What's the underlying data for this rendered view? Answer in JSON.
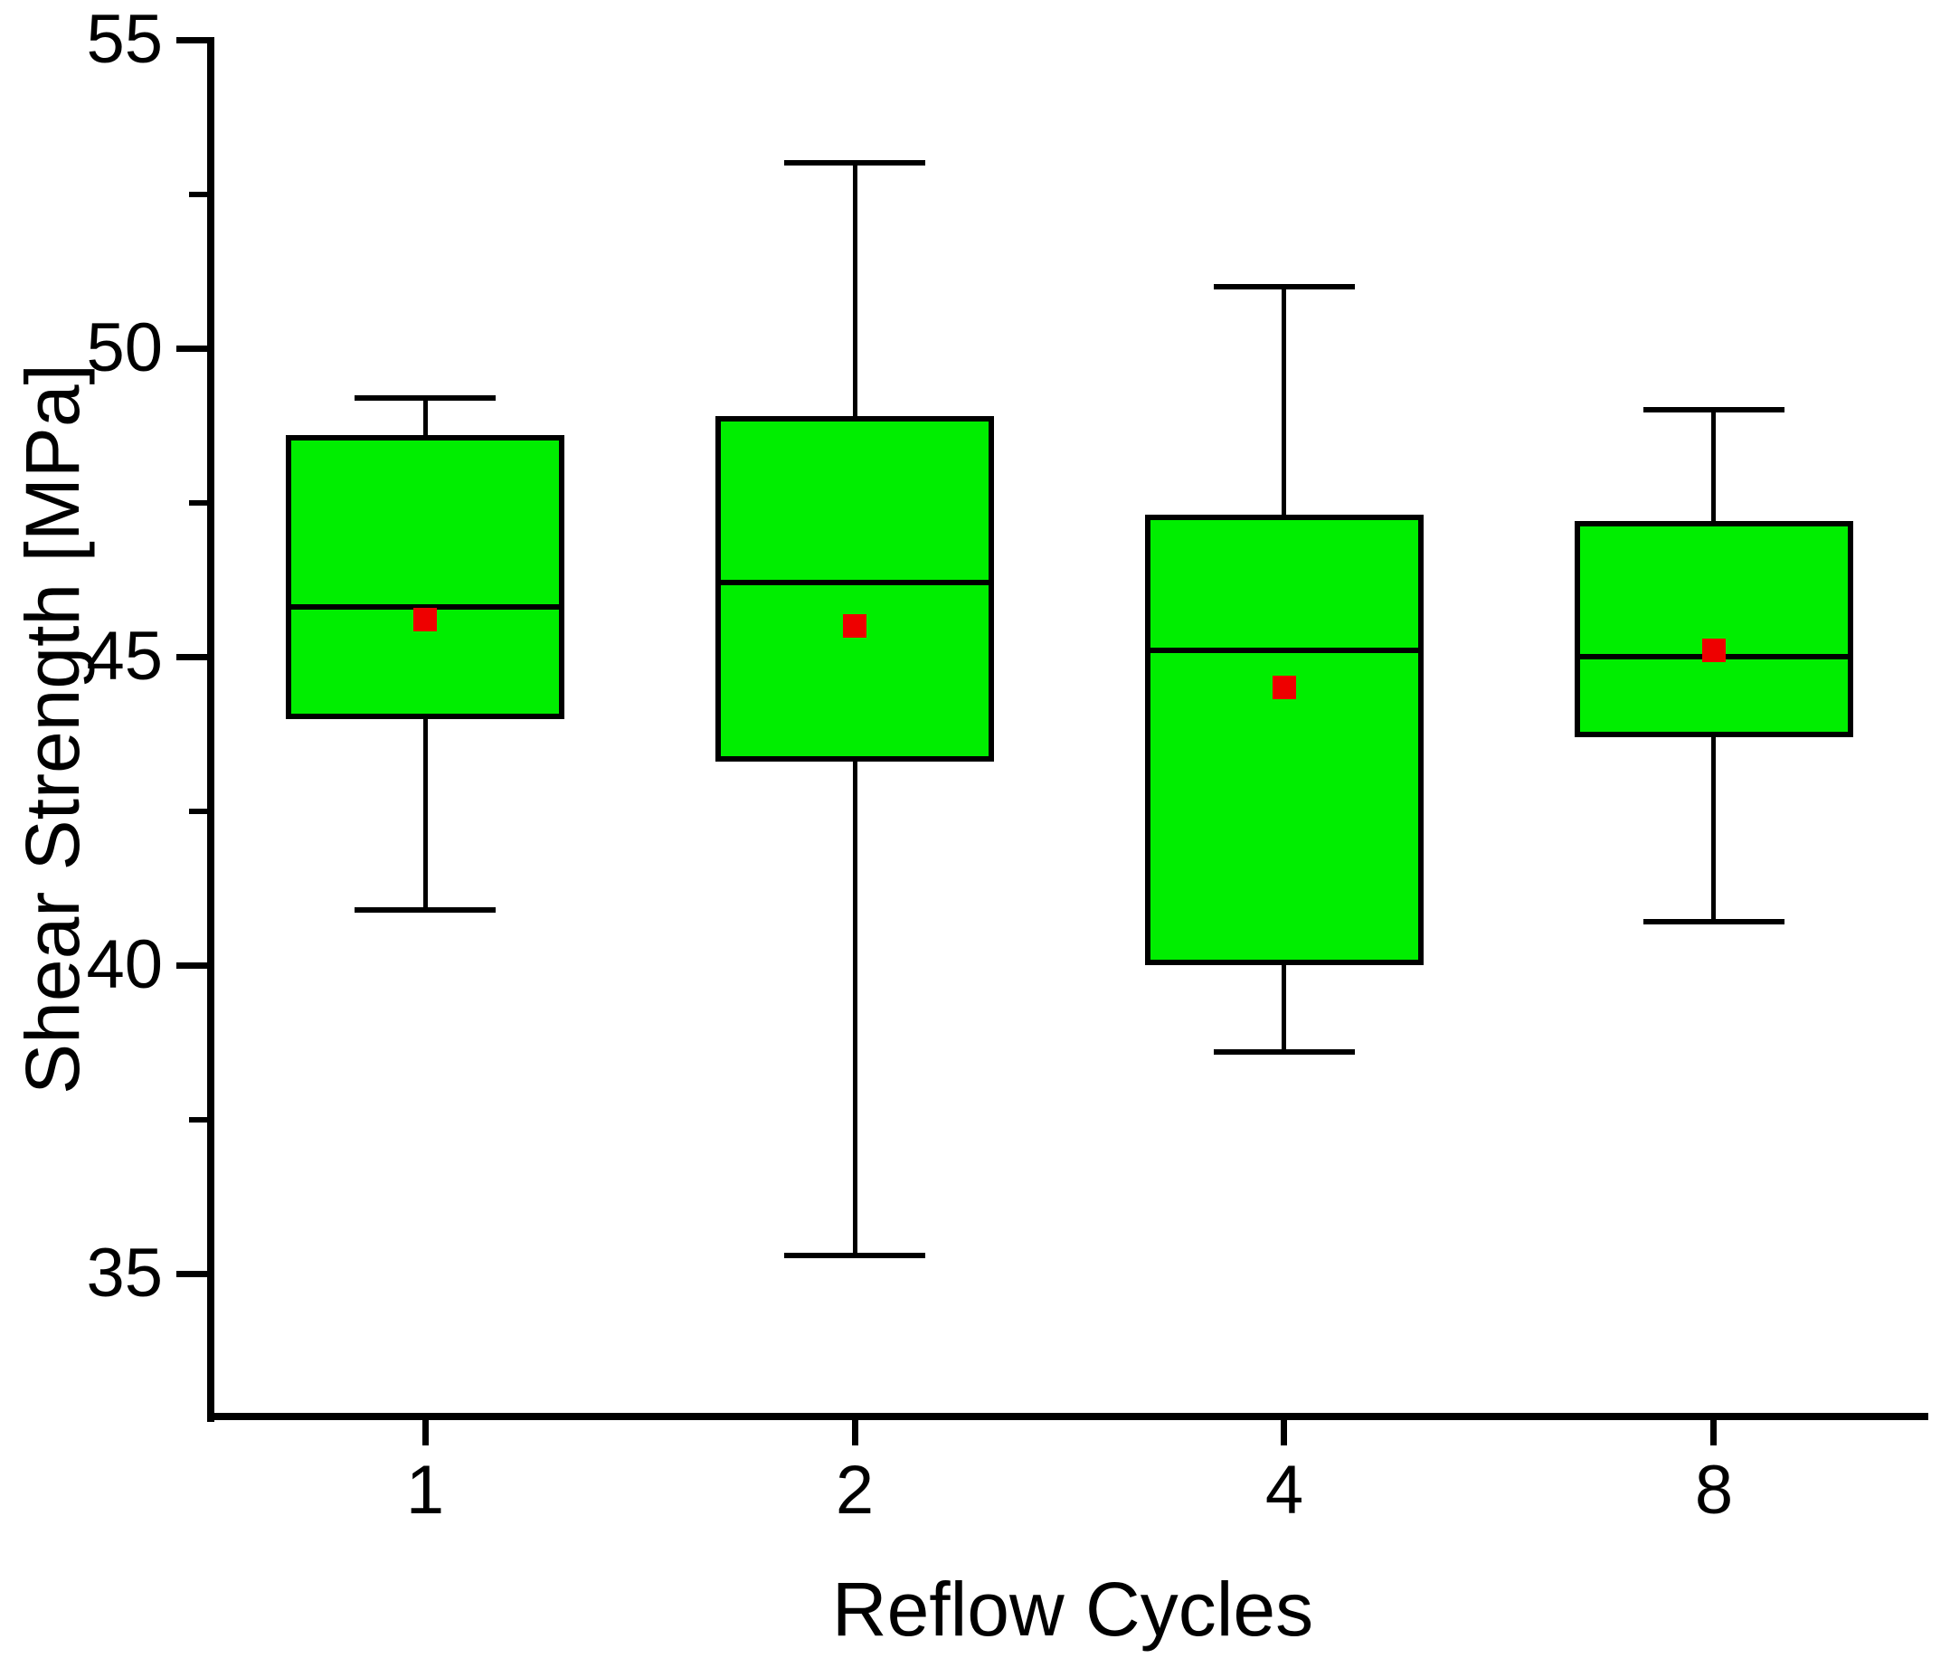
{
  "figure": {
    "background": "#ffffff"
  },
  "y_axis": {
    "title": "Shear Strength [MPa]",
    "range_low": 32.7,
    "range_high": 55,
    "major_ticks": [
      {
        "value": 55,
        "label": "55"
      },
      {
        "value": 50,
        "label": "50"
      },
      {
        "value": 45,
        "label": "45"
      },
      {
        "value": 40,
        "label": "40"
      },
      {
        "value": 35,
        "label": "35"
      }
    ],
    "minor_ticks": [
      52.5,
      47.5,
      42.5,
      37.5
    ]
  },
  "x_axis": {
    "title": "Reflow Cycles",
    "categories": [
      "1",
      "2",
      "4",
      "8"
    ]
  },
  "style": {
    "box_fill": "#00EE00",
    "box_border": "#000000",
    "mean_marker_color": "#EE0000",
    "axis_color": "#000000"
  },
  "chart_data": {
    "type": "box",
    "title": "",
    "xlabel": "Reflow Cycles",
    "ylabel": "Shear Strength [MPa]",
    "ylim": [
      32.7,
      55
    ],
    "grid": false,
    "legend": false,
    "categories": [
      "1",
      "2",
      "4",
      "8"
    ],
    "series": [
      {
        "category": "1",
        "whisker_low": 40.9,
        "q1": 44.0,
        "median": 45.8,
        "q3": 48.6,
        "whisker_high": 49.2,
        "mean": 45.6
      },
      {
        "category": "2",
        "whisker_low": 35.3,
        "q1": 43.3,
        "median": 46.2,
        "q3": 48.9,
        "whisker_high": 53.0,
        "mean": 45.5
      },
      {
        "category": "4",
        "whisker_low": 38.6,
        "q1": 40.0,
        "median": 45.1,
        "q3": 47.3,
        "whisker_high": 51.0,
        "mean": 44.5
      },
      {
        "category": "8",
        "whisker_low": 40.7,
        "q1": 43.7,
        "median": 45.0,
        "q3": 47.2,
        "whisker_high": 49.0,
        "mean": 45.1
      }
    ]
  }
}
